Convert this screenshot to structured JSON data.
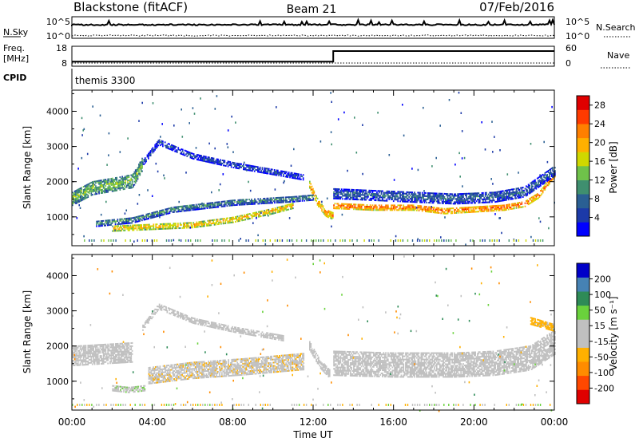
{
  "header": {
    "station": "Blackstone (fitACF)",
    "beam": "Beam 21",
    "date": "07/Feb/2016"
  },
  "noise_panel": {
    "left_label": "N.Sky",
    "left_ticks": [
      "10^5",
      "10^0"
    ],
    "right_ticks": [
      "10^5",
      "10^0"
    ],
    "right_label": "N.Search"
  },
  "freq_panel": {
    "left_label_1": "Freq.",
    "left_label_2": "[MHz]",
    "left_ticks": [
      "18",
      "8"
    ],
    "right_ticks": [
      "60",
      "0"
    ],
    "right_label": "Nave",
    "nave_step": {
      "before": 10,
      "after": 60,
      "switch_hour": 13.0
    },
    "freq_mhz": 10.5
  },
  "cpid": {
    "label": "CPID",
    "value": "themis 3300"
  },
  "colors": {
    "power_scale": [
      "#0000ff",
      "#1c3aa8",
      "#2a5f93",
      "#3f8f6f",
      "#6fc24a",
      "#d0d800",
      "#ffb000",
      "#ff7f00",
      "#ff3a00",
      "#e00000"
    ],
    "velocity_scale": [
      "#e00000",
      "#ff4800",
      "#ff8c00",
      "#ffb000",
      "#c0c0c0",
      "#c0c0c0",
      "#6ad23c",
      "#2e8b57",
      "#4682b4",
      "#0000c8"
    ],
    "ground_scatter": "#c0c0c0"
  },
  "chart_data": [
    {
      "type": "heatmap",
      "name": "power",
      "xlabel": "",
      "ylabel": "Slant Range [km]",
      "xlim": [
        0,
        24
      ],
      "ylim": [
        180,
        4600
      ],
      "yticks": [
        "1000",
        "2000",
        "3000",
        "4000"
      ],
      "xticks": [
        "00:00",
        "04:00",
        "08:00",
        "12:00",
        "16:00",
        "20:00",
        "00:00"
      ],
      "colorbar": {
        "label": "Power [dB]",
        "ticks": [
          "4",
          "8",
          "12",
          "16",
          "20",
          "24",
          "28"
        ],
        "range": [
          0,
          30
        ]
      },
      "features": [
        {
          "t": [
            0.0,
            1.0,
            2.0,
            3.0,
            3.5
          ],
          "r": [
            1500,
            1800,
            1900,
            2000,
            2500
          ],
          "width": 380,
          "value": 14
        },
        {
          "t": [
            3.5,
            4.3,
            6.0,
            8.0,
            10.0,
            11.5
          ],
          "r": [
            2500,
            3100,
            2700,
            2450,
            2250,
            2100
          ],
          "width": 140,
          "value": 7
        },
        {
          "t": [
            1.2,
            3.0,
            5.0,
            8.0,
            11.0,
            12.0
          ],
          "r": [
            800,
            900,
            1200,
            1400,
            1500,
            1550
          ],
          "width": 180,
          "value": 10
        },
        {
          "t": [
            2.0,
            4.0,
            6.0,
            8.0,
            10.0,
            11.0
          ],
          "r": [
            650,
            700,
            750,
            900,
            1150,
            1300
          ],
          "width": 150,
          "value": 20
        },
        {
          "t": [
            11.8,
            12.2,
            12.6,
            13.0
          ],
          "r": [
            1900,
            1400,
            1100,
            1000
          ],
          "width": 200,
          "value": 22
        },
        {
          "t": [
            13.0,
            15.0,
            17.0,
            18.5,
            20.0,
            21.5,
            22.5,
            23.2,
            24.0
          ],
          "r": [
            1300,
            1250,
            1250,
            1150,
            1200,
            1250,
            1350,
            1600,
            2200
          ],
          "width": 160,
          "value": 24
        },
        {
          "t": [
            13.0,
            15.0,
            17.0,
            19.0,
            21.0,
            22.5,
            24.0
          ],
          "r": [
            1650,
            1600,
            1550,
            1500,
            1550,
            1700,
            2300
          ],
          "width": 300,
          "value": 8
        }
      ]
    },
    {
      "type": "heatmap",
      "name": "velocity",
      "xlabel": "Time UT",
      "ylabel": "Slant Range [km]",
      "xlim": [
        0,
        24
      ],
      "ylim": [
        180,
        4600
      ],
      "yticks": [
        "1000",
        "2000",
        "3000",
        "4000"
      ],
      "xticks": [
        "00:00",
        "04:00",
        "08:00",
        "12:00",
        "16:00",
        "20:00",
        "00:00"
      ],
      "colorbar": {
        "label": "Velocity [m s⁻¹]",
        "ticks": [
          "-200",
          "-100",
          "-50",
          "-15",
          "15",
          "50",
          "100",
          "200"
        ],
        "range": [
          -250,
          250
        ]
      },
      "features": [
        {
          "t": [
            0.0,
            1.5,
            3.0
          ],
          "r": [
            1700,
            1750,
            1800
          ],
          "width": 550,
          "value": 0
        },
        {
          "t": [
            2.0,
            2.8,
            3.6
          ],
          "r": [
            800,
            750,
            800
          ],
          "width": 180,
          "value": 40
        },
        {
          "t": [
            3.8,
            6.0,
            8.5,
            10.5,
            11.5
          ],
          "r": [
            1150,
            1300,
            1400,
            1500,
            1550
          ],
          "width": 480,
          "value": -40
        },
        {
          "t": [
            3.5,
            4.3,
            6.0,
            8.0,
            10.5
          ],
          "r": [
            2500,
            3100,
            2700,
            2450,
            2200
          ],
          "width": 140,
          "value": 0
        },
        {
          "t": [
            11.8,
            12.3,
            12.8
          ],
          "r": [
            2000,
            1500,
            1200
          ],
          "width": 260,
          "value": 30
        },
        {
          "t": [
            13.0,
            16.0,
            19.0,
            21.0,
            22.8,
            24.0
          ],
          "r": [
            1500,
            1450,
            1450,
            1500,
            1650,
            2100
          ],
          "width": 700,
          "value": 0
        },
        {
          "t": [
            22.8,
            23.4,
            24.0
          ],
          "r": [
            2700,
            2600,
            2500
          ],
          "width": 200,
          "value": -60
        }
      ]
    }
  ]
}
